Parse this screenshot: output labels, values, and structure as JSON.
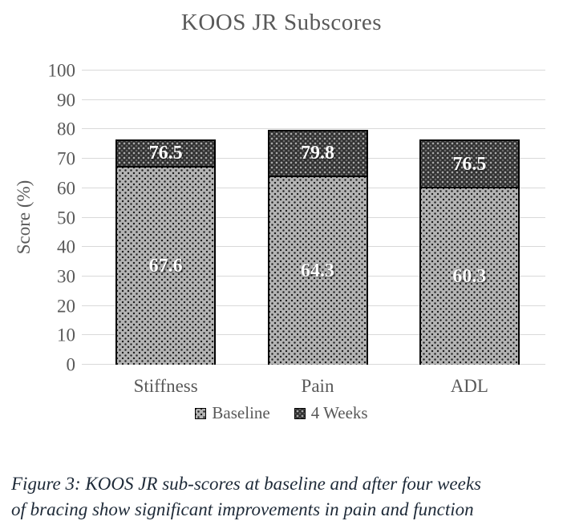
{
  "chart_data": {
    "type": "bar",
    "title": "KOOS JR Subscores",
    "xlabel": "",
    "ylabel": "Score (%)",
    "categories": [
      "Stiffness",
      "Pain",
      "ADL"
    ],
    "series": [
      {
        "name": "Baseline",
        "values": [
          67.6,
          64.3,
          60.3
        ]
      },
      {
        "name": "4 Weeks",
        "values": [
          76.5,
          79.8,
          76.5
        ]
      }
    ],
    "data_labels": {
      "baseline": [
        "67.6",
        "64.3",
        "60.3"
      ],
      "four_weeks": [
        "76.5",
        "79.8",
        "76.5"
      ]
    },
    "ylim": [
      0,
      100
    ],
    "yticks": [
      0,
      10,
      20,
      30,
      40,
      50,
      60,
      70,
      80,
      90,
      100
    ],
    "grid": true,
    "legend_position": "bottom",
    "bar_style": "overlapped: 4 Weeks bar full height with Baseline bar drawn in front from 0",
    "colors": {
      "background": "#ffffff",
      "text": "#595959",
      "gridline": "#d9d9d9",
      "bar_border": "#000000",
      "baseline_fill": "#b4b4b4",
      "baseline_dot": "#1f1f1f",
      "four_weeks_fill": "#303030",
      "four_weeks_dot": "#a9a9a9",
      "data_label": "#ffffff",
      "caption": "#1e2a38"
    }
  },
  "caption": {
    "line1": "Figure 3: KOOS JR sub-scores at baseline and after four weeks",
    "line2": "of bracing show significant improvements in pain and function"
  }
}
